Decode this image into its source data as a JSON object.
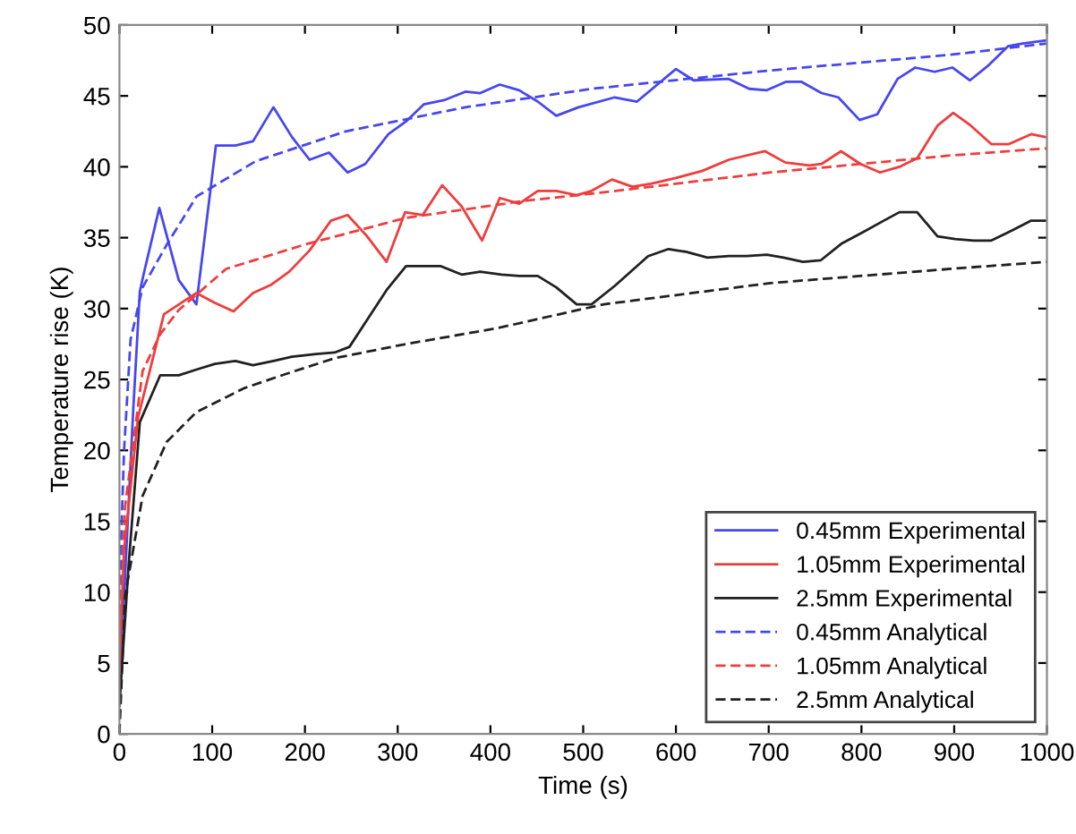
{
  "chart_data": {
    "type": "line",
    "xlabel": "Time (s)",
    "ylabel": "Temperature rise (K)",
    "xlim": [
      0,
      1000
    ],
    "ylim": [
      0,
      50
    ],
    "xticks": [
      0,
      100,
      200,
      300,
      400,
      500,
      600,
      700,
      800,
      900,
      1000
    ],
    "yticks": [
      0,
      5,
      10,
      15,
      20,
      25,
      30,
      35,
      40,
      45,
      50
    ],
    "grid": false,
    "legend": "bottom right",
    "marker": "none",
    "series": [
      {
        "name": "0.45mm Experimental",
        "color": "#4646f0",
        "line_style": "solid",
        "x": [
          0,
          15,
          22,
          26,
          43,
          64,
          83,
          104,
          125,
          144,
          166,
          186,
          205,
          226,
          246,
          265,
          290,
          309,
          328,
          350,
          373,
          389,
          410,
          431,
          451,
          471,
          495,
          534,
          558,
          600,
          619,
          657,
          679,
          698,
          719,
          735,
          757,
          775,
          798,
          817,
          839,
          858,
          879,
          898,
          917,
          936,
          958,
          974,
          998
        ],
        "values": [
          3,
          23,
          31.2,
          32.4,
          37.1,
          32.0,
          30.3,
          41.5,
          41.5,
          41.8,
          44.2,
          42.1,
          40.5,
          41.0,
          39.6,
          40.2,
          42.3,
          43.2,
          44.4,
          44.7,
          45.3,
          45.2,
          45.8,
          45.4,
          44.6,
          43.6,
          44.2,
          44.9,
          44.6,
          46.9,
          46.1,
          46.2,
          45.5,
          45.4,
          46.0,
          46.0,
          45.2,
          44.9,
          43.3,
          43.7,
          46.2,
          47.0,
          46.7,
          47.0,
          46.1,
          47.1,
          48.5,
          48.7,
          48.9
        ]
      },
      {
        "name": "1.05mm Experimental",
        "color": "#f03c3c",
        "line_style": "solid",
        "x": [
          0,
          5,
          20,
          48,
          83,
          103,
          123,
          144,
          164,
          183,
          205,
          228,
          246,
          267,
          288,
          308,
          327,
          348,
          369,
          391,
          410,
          431,
          451,
          471,
          493,
          509,
          531,
          553,
          573,
          599,
          628,
          657,
          696,
          718,
          744,
          757,
          778,
          799,
          820,
          841,
          860,
          882,
          899,
          918,
          940,
          959,
          983,
          998
        ],
        "values": [
          5,
          13,
          22.3,
          29.6,
          31.1,
          30.4,
          29.8,
          31.1,
          31.7,
          32.6,
          34.1,
          36.2,
          36.6,
          35.1,
          33.3,
          36.8,
          36.6,
          38.7,
          37.2,
          34.8,
          37.8,
          37.4,
          38.3,
          38.3,
          38.0,
          38.3,
          39.1,
          38.6,
          38.8,
          39.2,
          39.7,
          40.5,
          41.1,
          40.3,
          40.1,
          40.2,
          41.1,
          40.2,
          39.6,
          40.0,
          40.6,
          42.9,
          43.8,
          42.9,
          41.6,
          41.6,
          42.3,
          42.1
        ]
      },
      {
        "name": "2.5mm Experimental",
        "color": "#202020",
        "line_style": "solid",
        "x": [
          0,
          10,
          22,
          44,
          64,
          83,
          103,
          125,
          144,
          166,
          186,
          212,
          232,
          248,
          267,
          288,
          309,
          328,
          346,
          369,
          389,
          412,
          431,
          451,
          471,
          493,
          509,
          534,
          570,
          592,
          611,
          634,
          657,
          676,
          698,
          716,
          737,
          756,
          779,
          802,
          824,
          841,
          860,
          882,
          901,
          921,
          940,
          959,
          983,
          998
        ],
        "values": [
          2,
          12,
          22,
          25.3,
          25.3,
          25.7,
          26.1,
          26.3,
          26.0,
          26.3,
          26.6,
          26.8,
          26.9,
          27.3,
          29.2,
          31.3,
          33.0,
          33.0,
          33.0,
          32.4,
          32.6,
          32.4,
          32.3,
          32.3,
          31.5,
          30.3,
          30.3,
          31.6,
          33.7,
          34.2,
          34.0,
          33.6,
          33.7,
          33.7,
          33.8,
          33.6,
          33.3,
          33.4,
          34.6,
          35.4,
          36.2,
          36.8,
          36.8,
          35.1,
          34.9,
          34.8,
          34.8,
          35.4,
          36.2,
          36.2
        ]
      },
      {
        "name": "0.45mm Analytical",
        "color": "#4646f0",
        "line_style": "dashed",
        "x": [
          0,
          2,
          5,
          12,
          25,
          51,
          83,
          147,
          244,
          373,
          509,
          702,
          896,
          1000
        ],
        "values": [
          0,
          14,
          20,
          27.8,
          31.5,
          34.5,
          37.9,
          40.4,
          42.5,
          44.2,
          45.5,
          46.8,
          47.9,
          48.7
        ]
      },
      {
        "name": "1.05mm Analytical",
        "color": "#f03c3c",
        "line_style": "dashed",
        "x": [
          0,
          2,
          6,
          25,
          44,
          64,
          115,
          199,
          309,
          437,
          522,
          702,
          896,
          1000
        ],
        "values": [
          0,
          9,
          16,
          25.6,
          28.2,
          29.9,
          32.8,
          34.5,
          36.4,
          37.6,
          38.2,
          39.6,
          40.8,
          41.3
        ]
      },
      {
        "name": "2.5mm Analytical",
        "color": "#202020",
        "line_style": "dashed",
        "x": [
          0,
          6,
          25,
          51,
          83,
          135,
          180,
          232,
          309,
          406,
          522,
          702,
          896,
          1000
        ],
        "values": [
          0,
          9.7,
          16.8,
          20.6,
          22.7,
          24.4,
          25.4,
          26.5,
          27.5,
          28.6,
          30.3,
          31.8,
          32.8,
          33.3
        ]
      }
    ]
  }
}
